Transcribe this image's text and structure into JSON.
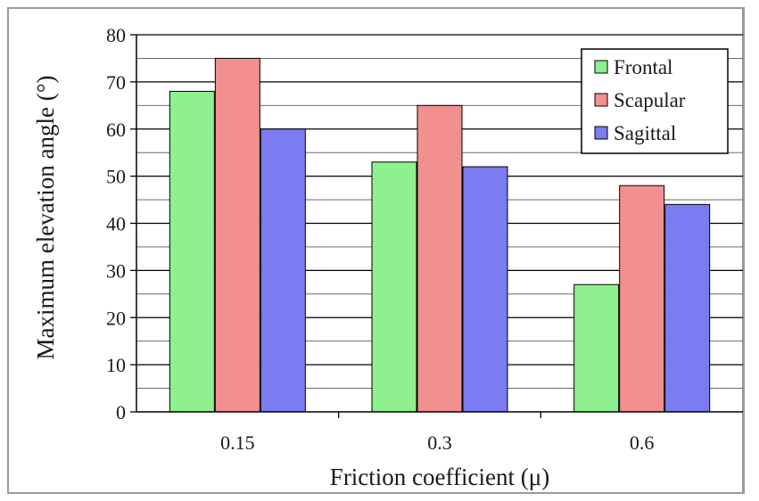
{
  "chart_data": {
    "type": "bar",
    "title": "",
    "xlabel": "Friction coefficient (μ)",
    "ylabel": "Maximum elevation angle (°)",
    "categories": [
      "0.15",
      "0.3",
      "0.6"
    ],
    "series": [
      {
        "name": "Frontal",
        "color": "#8ef08e",
        "values": [
          68,
          53,
          27
        ]
      },
      {
        "name": "Scapular",
        "color": "#f29090",
        "values": [
          75,
          65,
          48
        ]
      },
      {
        "name": "Sagittal",
        "color": "#7b7bf2",
        "values": [
          60,
          52,
          44
        ]
      }
    ],
    "ylim": [
      0,
      80
    ],
    "yticks": [
      0,
      10,
      20,
      30,
      40,
      50,
      60,
      70,
      80
    ],
    "grid": true,
    "legend": "top-right"
  }
}
